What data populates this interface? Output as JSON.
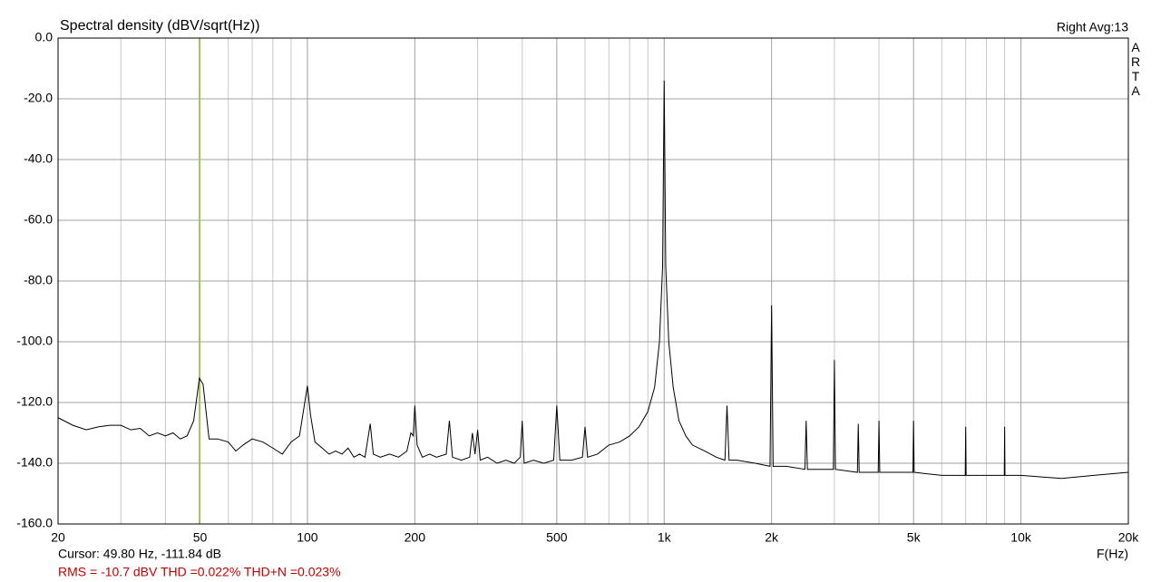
{
  "chart_data": {
    "type": "line",
    "title": "Spectral density (dBV/sqrt(Hz))",
    "top_right_label": "Right  Avg:13",
    "side_label": "ARTA",
    "xlabel": "F(Hz)",
    "cursor": {
      "x": 49.8,
      "label": "Cursor: 49.80 Hz, -111.84 dB",
      "color": "#a8c840"
    },
    "summary": "RMS =  -10.7 dBV  THD =0.022%  THD+N =0.023%",
    "xscale": "log",
    "grid": true,
    "xlim": [
      20,
      20000
    ],
    "ylim": [
      -160,
      0
    ],
    "xticks": [
      20,
      50,
      100,
      200,
      500,
      {
        "value": 1000,
        "label": "1k"
      },
      {
        "value": 2000,
        "label": "2k"
      },
      {
        "value": 5000,
        "label": "5k"
      },
      {
        "value": 10000,
        "label": "10k"
      },
      {
        "value": 20000,
        "label": "20k"
      }
    ],
    "x_minor_ticks": [
      30,
      40,
      60,
      70,
      80,
      90,
      300,
      400,
      600,
      700,
      800,
      900,
      3000,
      4000,
      6000,
      7000,
      8000,
      9000
    ],
    "yticks": [
      {
        "value": 0,
        "label": "0.0"
      },
      {
        "value": -20,
        "label": "-20.0"
      },
      {
        "value": -40,
        "label": "-40.0"
      },
      {
        "value": -60,
        "label": "-60.0"
      },
      {
        "value": -80,
        "label": "-80.0"
      },
      {
        "value": -100,
        "label": "-100.0"
      },
      {
        "value": -120,
        "label": "-120.0"
      },
      {
        "value": -140,
        "label": "-140.0"
      },
      {
        "value": -160,
        "label": "-160.0"
      }
    ],
    "x": [
      20,
      22,
      24,
      26,
      28,
      30,
      32,
      34,
      36,
      38,
      40,
      42,
      44,
      46,
      48,
      49.8,
      51,
      53,
      56,
      60,
      63,
      66,
      70,
      75,
      80,
      85,
      90,
      95,
      100,
      102,
      105,
      110,
      115,
      120,
      125,
      130,
      135,
      140,
      145,
      150,
      153,
      160,
      170,
      180,
      190,
      195,
      198,
      200,
      203,
      210,
      220,
      230,
      245,
      250,
      255,
      270,
      285,
      290,
      295,
      300,
      305,
      320,
      340,
      360,
      380,
      395,
      400,
      405,
      430,
      460,
      490,
      500,
      510,
      550,
      590,
      600,
      610,
      650,
      700,
      750,
      800,
      850,
      900,
      940,
      970,
      990,
      1000,
      1010,
      1030,
      1060,
      1100,
      1150,
      1200,
      1300,
      1400,
      1480,
      1500,
      1520,
      1600,
      1800,
      1980,
      2000,
      2020,
      2200,
      2480,
      2500,
      2520,
      2800,
      2980,
      3000,
      3020,
      3480,
      3500,
      3520,
      3980,
      4000,
      4020,
      4980,
      5000,
      5020,
      6000,
      6980,
      7000,
      7020,
      8000,
      8980,
      9000,
      9020,
      10000,
      13000,
      16000,
      20000
    ],
    "series": [
      {
        "color": "#000000",
        "values": [
          -125,
          -127.5,
          -129,
          -128,
          -127.5,
          -127.5,
          -129,
          -128.5,
          -131,
          -130,
          -131,
          -130,
          -132,
          -131,
          -126,
          -112,
          -114,
          -132,
          -132,
          -133,
          -136,
          -134,
          -132,
          -133,
          -135,
          -137,
          -133,
          -131,
          -114.5,
          -124,
          -133,
          -135,
          -137,
          -136,
          -137,
          -135,
          -138,
          -137,
          -138,
          -127,
          -137,
          -138,
          -137,
          -138,
          -136,
          -130,
          -131,
          -121,
          -134,
          -138,
          -137,
          -138,
          -137,
          -126,
          -138,
          -139,
          -138,
          -130,
          -137,
          -129,
          -139,
          -138,
          -140,
          -139,
          -140,
          -138,
          -126,
          -140,
          -139,
          -140,
          -139,
          -121,
          -139,
          -139,
          -138,
          -128,
          -138,
          -137,
          -134,
          -133,
          -131,
          -128,
          -123,
          -115,
          -100,
          -75,
          -14,
          -75,
          -100,
          -115,
          -126,
          -131,
          -134,
          -136,
          -138,
          -139,
          -121,
          -139,
          -139,
          -140,
          -141,
          -88,
          -141,
          -141,
          -142,
          -126,
          -142,
          -142,
          -142,
          -106,
          -142,
          -143,
          -127,
          -143,
          -143,
          -126,
          -143,
          -143,
          -126,
          -143,
          -144,
          -144,
          -128,
          -144,
          -144,
          -144,
          -128,
          -144,
          -144,
          -145,
          -144,
          -143
        ]
      }
    ]
  }
}
